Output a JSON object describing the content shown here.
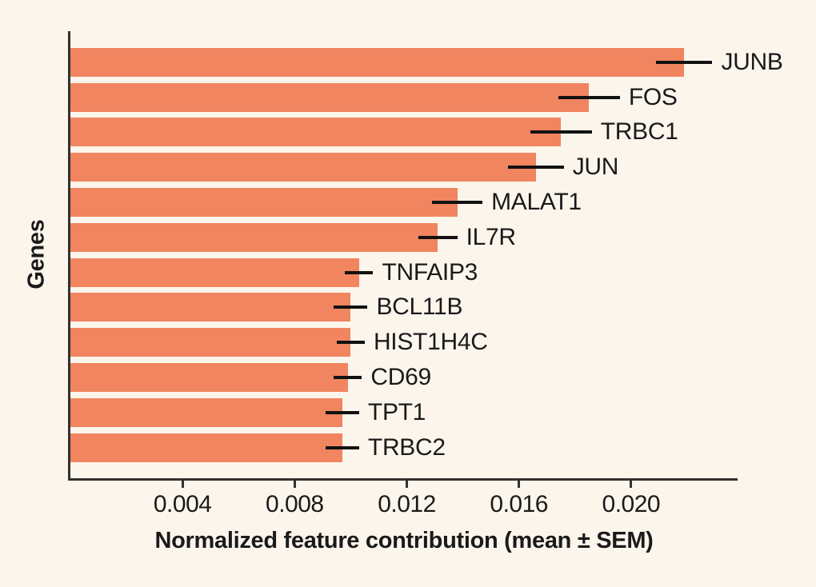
{
  "chart_data": {
    "type": "bar",
    "orientation": "horizontal",
    "title": "",
    "xlabel": "Normalized feature contribution (mean ± SEM)",
    "ylabel": "Genes",
    "categories": [
      "JUNB",
      "FOS",
      "TRBC1",
      "JUN",
      "MALAT1",
      "IL7R",
      "TNFAIP3",
      "BCL11B",
      "HIST1H4C",
      "CD69",
      "TPT1",
      "TRBC2"
    ],
    "series": [
      {
        "name": "Normalized feature contribution (mean)",
        "values": [
          0.0219,
          0.0185,
          0.0175,
          0.0166,
          0.0138,
          0.0131,
          0.0103,
          0.01,
          0.01,
          0.0099,
          0.0097,
          0.0097
        ]
      },
      {
        "name": "SEM",
        "values": [
          0.001,
          0.0011,
          0.0011,
          0.001,
          0.0009,
          0.0007,
          0.0005,
          0.0006,
          0.0005,
          0.0005,
          0.0006,
          0.0006
        ]
      }
    ],
    "xlim": [
      0,
      0.0238
    ],
    "xticks": [
      0.004,
      0.008,
      0.012,
      0.016,
      0.02
    ],
    "xtick_labels": [
      "0.004",
      "0.008",
      "0.012",
      "0.016",
      "0.020"
    ],
    "grid": false,
    "legend_position": "none",
    "colors": {
      "bar": "#F0855F",
      "error_bar": "#111111",
      "background": "#FCF5EC",
      "spine": "#33312E",
      "text": "#1A1A1A"
    }
  }
}
